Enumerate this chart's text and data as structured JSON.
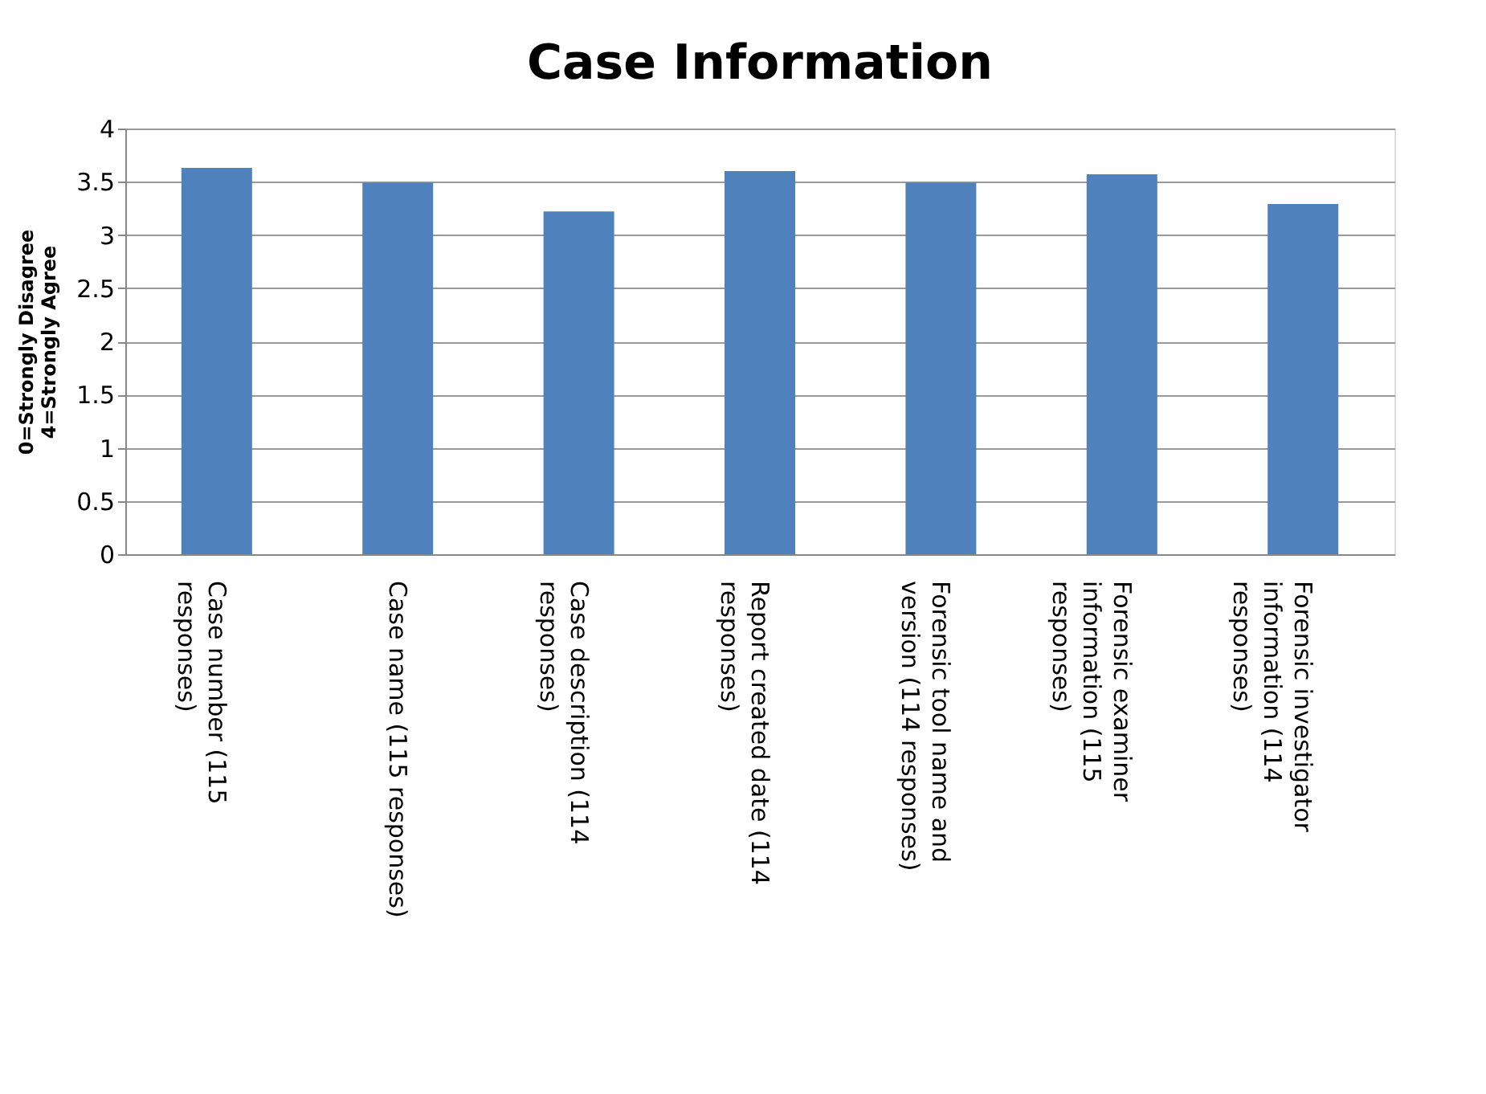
{
  "chart_data": {
    "type": "bar",
    "title": "Case Information",
    "ylabel": "0=Strongly Disagree 4=Strongly Agree",
    "categories": [
      "Case number (115 responses)",
      "Case name (115 responses)",
      "Case description (114 responses)",
      "Report created date (114 responses)",
      "Forensic tool name and version (114 responses)",
      "Forensic examiner information (115 responses)",
      "Forensic investigator information (114 responses)"
    ],
    "values": [
      3.63,
      3.49,
      3.22,
      3.6,
      3.49,
      3.57,
      3.29
    ],
    "color": "#4f81bd",
    "ylim": [
      0,
      4
    ],
    "yticks": [
      0,
      0.5,
      1,
      1.5,
      2,
      2.5,
      3,
      3.5,
      4
    ],
    "grid": "y"
  }
}
